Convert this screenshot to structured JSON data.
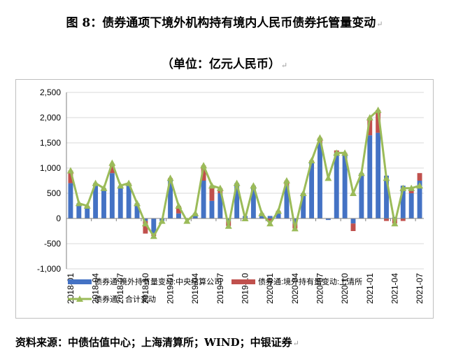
{
  "title": "图 8：债券通项下境外机构持有境内人民币债券托管量变动",
  "subtitle": "（单位：亿元人民币）",
  "source": "资料来源：中债估值中心；上海清算所；WIND；中银证券",
  "paragraph_mark": "↵",
  "colors": {
    "ccdc": "#4472C4",
    "shclearing": "#C0504D",
    "total": "#9BBB59",
    "grid": "#d9d9d9",
    "axis": "#808080"
  },
  "chart_data": {
    "type": "bar",
    "stacked": true,
    "categories": [
      "2018-01",
      "2018-02",
      "2018-03",
      "2018-04",
      "2018-05",
      "2018-06",
      "2018-07",
      "2018-08",
      "2018-09",
      "2018-10",
      "2018-11",
      "2018-12",
      "2019-01",
      "2019-02",
      "2019-03",
      "2019-04",
      "2019-05",
      "2019-06",
      "2019-07",
      "2019-08",
      "2019-09",
      "2019-10",
      "2019-11",
      "2019-12",
      "2020-01",
      "2020-02",
      "2020-03",
      "2020-04",
      "2020-05",
      "2020-06",
      "2020-07",
      "2020-08",
      "2020-09",
      "2020-10",
      "2020-11",
      "2020-12",
      "2021-01",
      "2021-02",
      "2021-03",
      "2021-04",
      "2021-05",
      "2021-06",
      "2021-07"
    ],
    "tick_labels": [
      "2018-01",
      "2018-04",
      "2018-07",
      "2018-10",
      "2019-01",
      "2019-04",
      "2019-07",
      "2019-10",
      "2020-01",
      "2020-04",
      "2020-07",
      "2020-10",
      "2021-01",
      "2021-04",
      "2021-07"
    ],
    "series": [
      {
        "name": "债券通:境外持有量变动:中央结算公司",
        "type": "bar",
        "values": [
          700,
          300,
          200,
          700,
          600,
          900,
          650,
          650,
          300,
          -50,
          -300,
          -50,
          750,
          100,
          0,
          100,
          750,
          350,
          500,
          -50,
          700,
          50,
          650,
          50,
          50,
          100,
          650,
          -100,
          500,
          1100,
          1500,
          -30,
          1300,
          1250,
          -100,
          900,
          1650,
          1700,
          850,
          30,
          650,
          500,
          750
        ]
      },
      {
        "name": "债券通:境外持有量变动:上清所",
        "type": "bar",
        "values": [
          250,
          0,
          50,
          0,
          0,
          150,
          0,
          50,
          0,
          -250,
          -50,
          0,
          50,
          150,
          0,
          0,
          300,
          300,
          100,
          -100,
          0,
          -50,
          0,
          50,
          -50,
          50,
          100,
          -100,
          0,
          50,
          100,
          0,
          50,
          50,
          -150,
          0,
          350,
          450,
          -50,
          -100,
          -50,
          100,
          150
        ]
      },
      {
        "name": "债券通：合计变动",
        "type": "line",
        "values": [
          950,
          300,
          250,
          700,
          600,
          1100,
          650,
          700,
          300,
          -100,
          -350,
          -50,
          800,
          250,
          -50,
          100,
          1050,
          650,
          600,
          -150,
          700,
          0,
          650,
          100,
          -100,
          150,
          750,
          -200,
          500,
          1150,
          1600,
          800,
          1300,
          1300,
          500,
          900,
          2000,
          2150,
          800,
          -100,
          600,
          600,
          650
        ]
      }
    ],
    "ylim": [
      -1000,
      2500
    ],
    "yticks": [
      -1000,
      -500,
      0,
      500,
      1000,
      1500,
      2000,
      2500
    ],
    "ytick_labels": [
      "-1,000",
      "-500",
      "0",
      "500",
      "1,000",
      "1,500",
      "2,000",
      "2,500"
    ],
    "grid": true,
    "legend_position": "bottom"
  }
}
